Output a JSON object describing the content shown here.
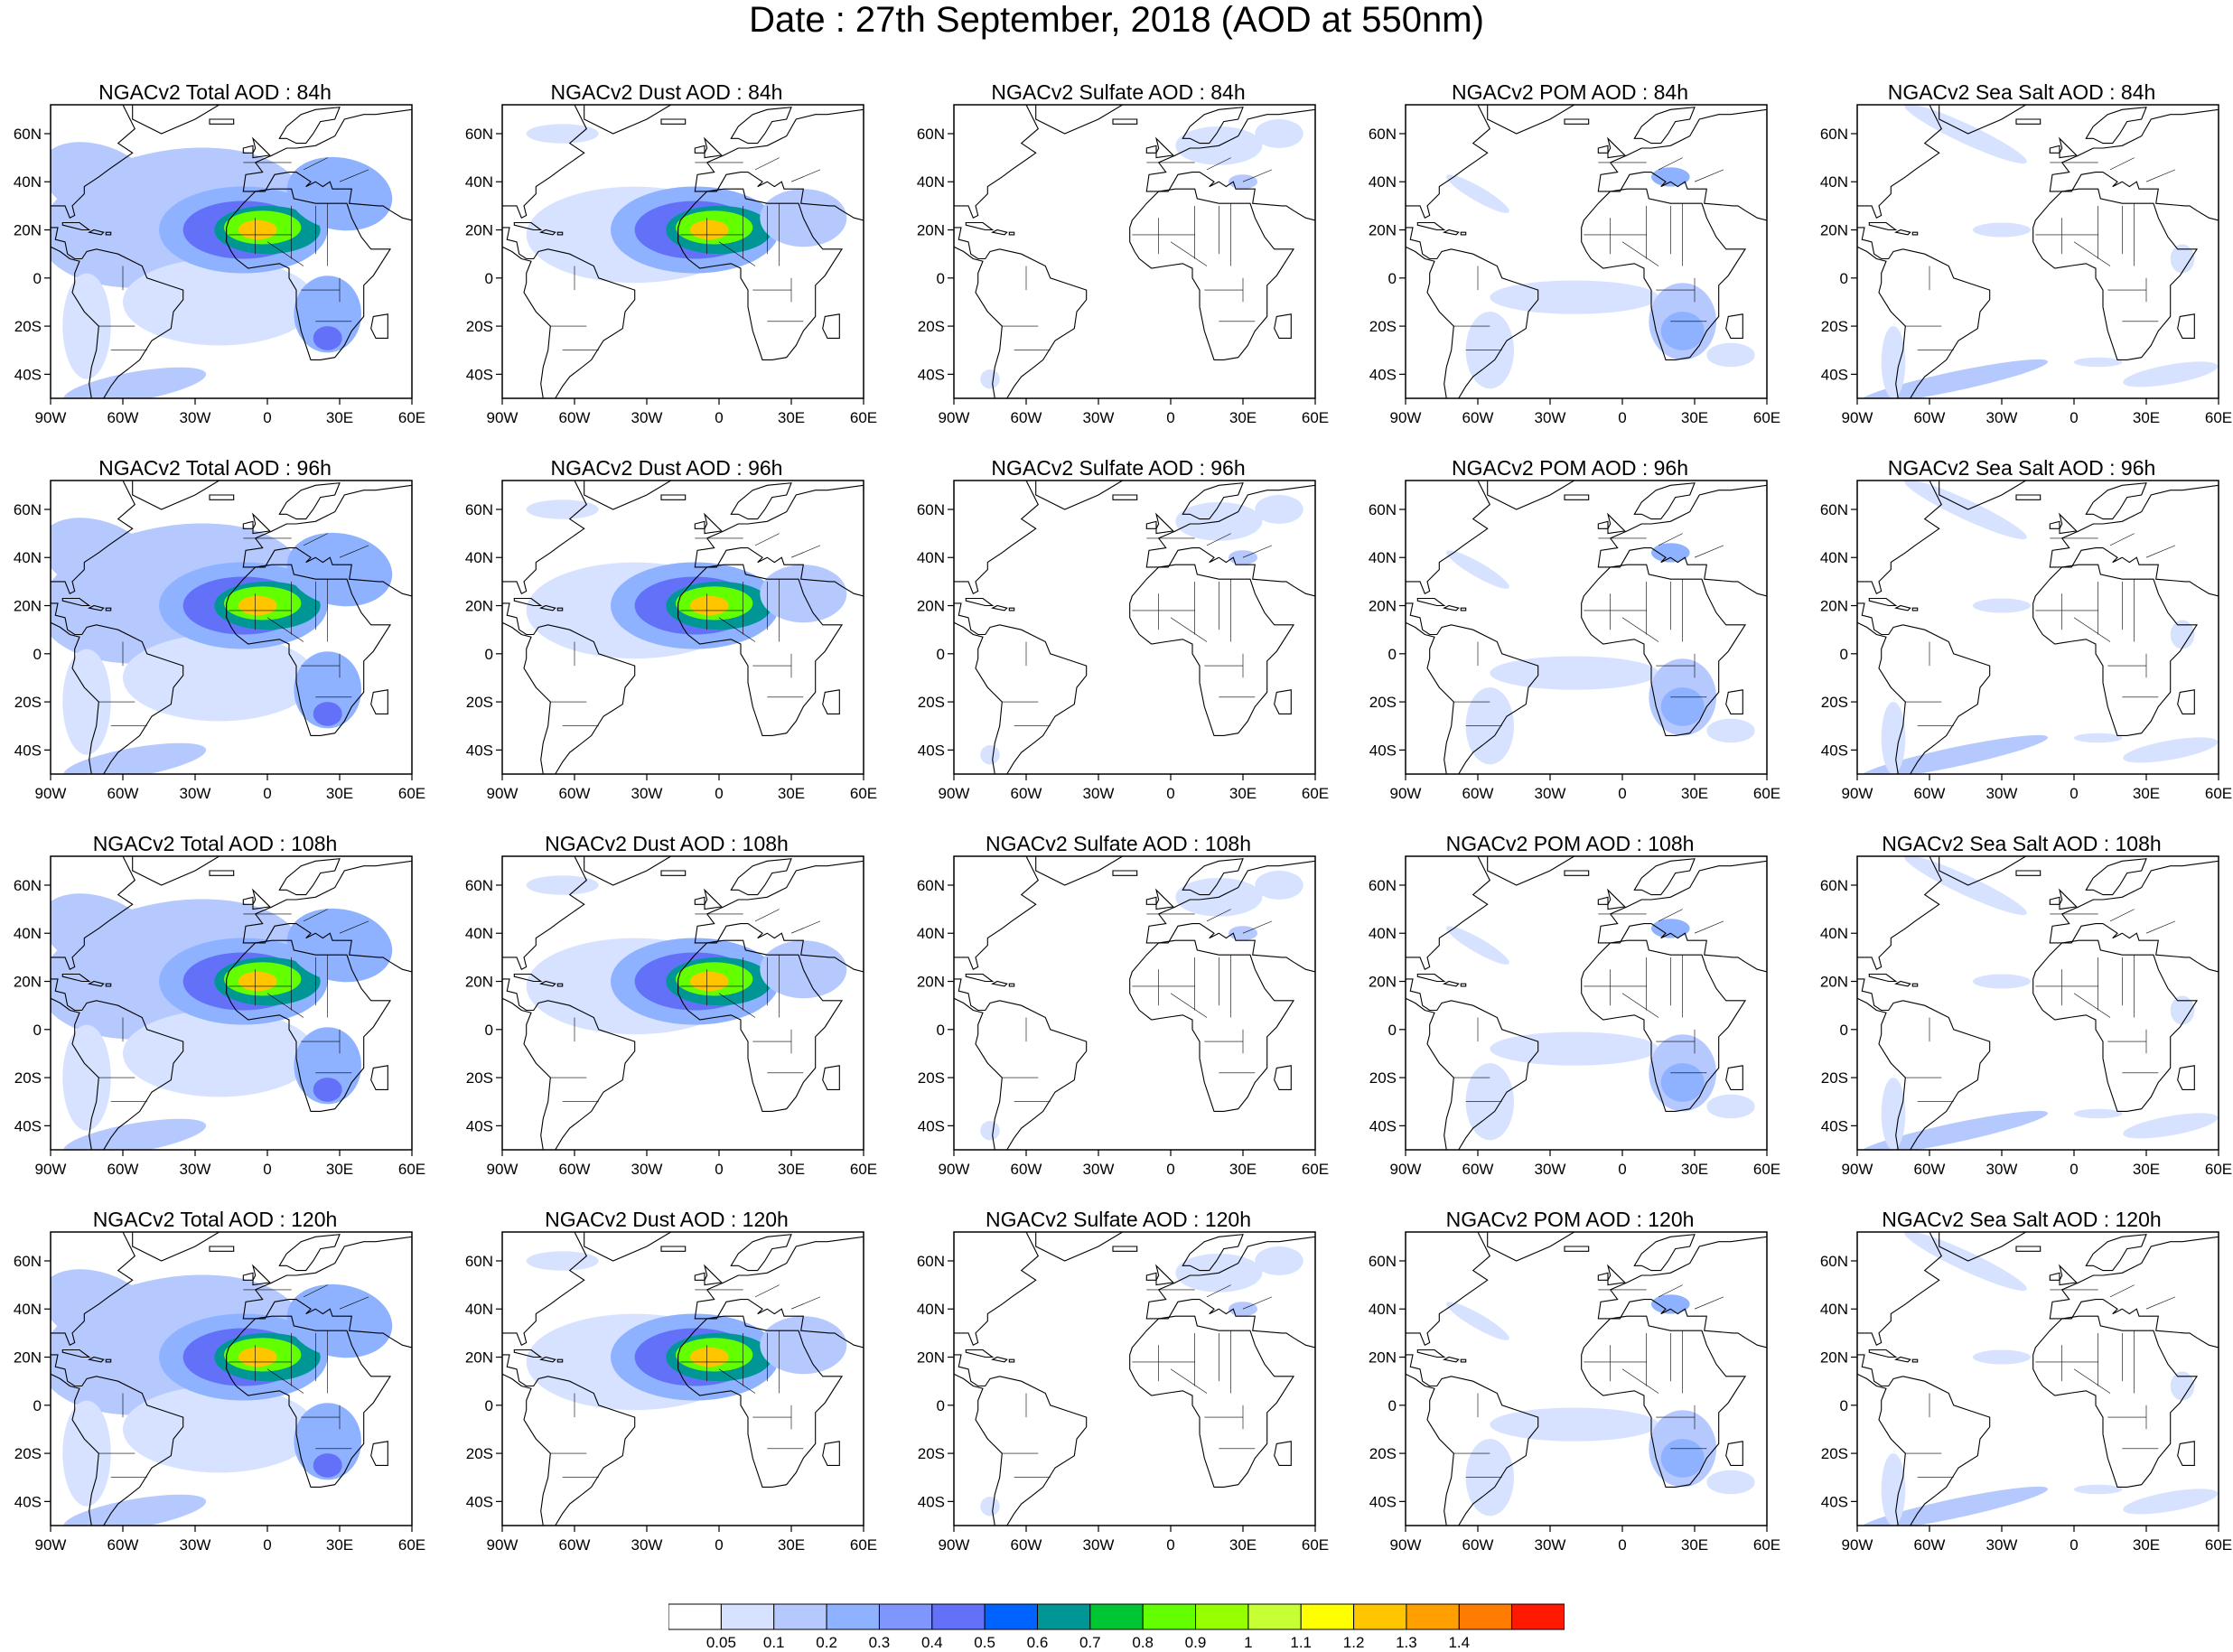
{
  "figure": {
    "title": "Date : 27th September, 2018 (AOD at 550nm)"
  },
  "axes": {
    "lon_ticks": [
      "90W",
      "60W",
      "30W",
      "0",
      "30E",
      "60E"
    ],
    "lat_ticks": [
      "60N",
      "40N",
      "20N",
      "0",
      "20S",
      "40S"
    ]
  },
  "panels": [
    [
      "NGACv2 Total AOD : 84h",
      "NGACv2 Dust AOD : 84h",
      "NGACv2 Sulfate AOD : 84h",
      "NGACv2 POM AOD : 84h",
      "NGACv2 Sea Salt AOD : 84h"
    ],
    [
      "NGACv2 Total AOD : 96h",
      "NGACv2 Dust AOD : 96h",
      "NGACv2 Sulfate AOD : 96h",
      "NGACv2 POM AOD : 96h",
      "NGACv2 Sea Salt AOD : 96h"
    ],
    [
      "NGACv2 Total AOD : 108h",
      "NGACv2 Dust AOD : 108h",
      "NGACv2 Sulfate AOD : 108h",
      "NGACv2 POM AOD : 108h",
      "NGACv2 Sea Salt AOD : 108h"
    ],
    [
      "NGACv2 Total AOD : 120h",
      "NGACv2 Dust AOD : 120h",
      "NGACv2 Sulfate AOD : 120h",
      "NGACv2 POM AOD : 120h",
      "NGACv2 Sea Salt  AOD : 120h"
    ]
  ],
  "colorbar": {
    "labels": [
      "0.05",
      "0.1",
      "0.2",
      "0.3",
      "0.4",
      "0.5",
      "0.6",
      "0.7",
      "0.8",
      "0.9",
      "1",
      "1.1",
      "1.2",
      "1.3",
      "1.4"
    ],
    "colors": [
      "#ffffff",
      "#d6e2ff",
      "#b5c9ff",
      "#8eb2ff",
      "#7f96ff",
      "#6370f8",
      "#0063ff",
      "#009696",
      "#00c633",
      "#63ff00",
      "#96ff00",
      "#c6ff33",
      "#ffff00",
      "#ffc600",
      "#ffa000",
      "#ff7c00",
      "#ff1900"
    ]
  }
}
